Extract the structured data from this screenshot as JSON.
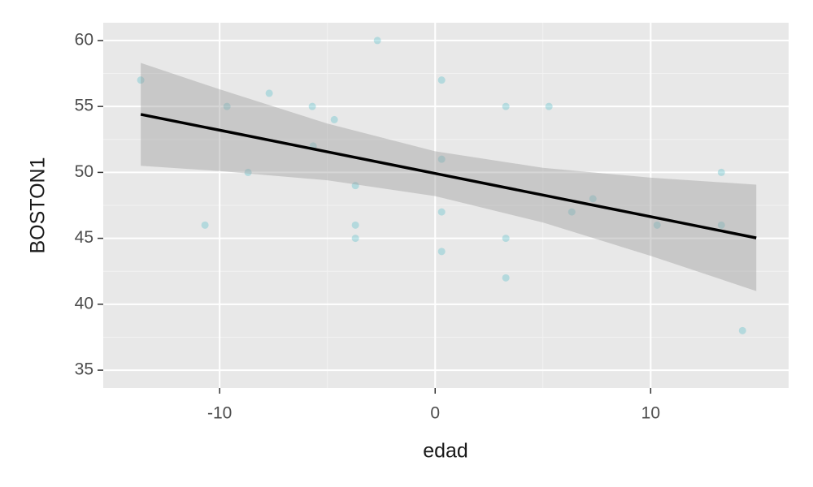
{
  "chart_data": {
    "type": "scatter",
    "x_label": "edad",
    "y_label": "BOSTON1",
    "xlim": [
      -15.4,
      16.4
    ],
    "ylim": [
      33.65,
      61.35
    ],
    "xticks": [
      -10,
      0,
      10
    ],
    "yticks": [
      35,
      40,
      45,
      50,
      55,
      60
    ],
    "grid": true,
    "series": [
      {
        "color": "#66c2cc",
        "x": [
          -13.66,
          -10.68,
          -9.66,
          -8.68,
          -7.7,
          -5.7,
          -5.66,
          -4.68,
          -3.7,
          -3.7,
          -3.7,
          -2.68,
          0.3,
          0.3,
          0.3,
          0.3,
          3.28,
          3.28,
          3.28,
          5.28,
          6.34,
          7.32,
          10.3,
          13.28,
          13.28,
          14.26
        ],
        "values": [
          57,
          46,
          55,
          50,
          56,
          55,
          52,
          54,
          49,
          46,
          45,
          60,
          57,
          51,
          47,
          44,
          55,
          45,
          42,
          55,
          47,
          48,
          46,
          50,
          46,
          38
        ]
      }
    ],
    "fit": {
      "color": "#000000",
      "band_color": "#999999",
      "x": [
        -13.66,
        -10,
        -5,
        0,
        5,
        10,
        14.9
      ],
      "values": [
        54.4,
        53.2,
        51.56,
        49.92,
        48.28,
        46.64,
        45.03
      ],
      "lower": [
        50.5,
        50.1,
        49.4,
        48.2,
        46.2,
        43.67,
        41.0
      ],
      "upper": [
        58.3,
        56.3,
        53.7,
        51.6,
        50.35,
        49.6,
        49.07
      ]
    }
  }
}
